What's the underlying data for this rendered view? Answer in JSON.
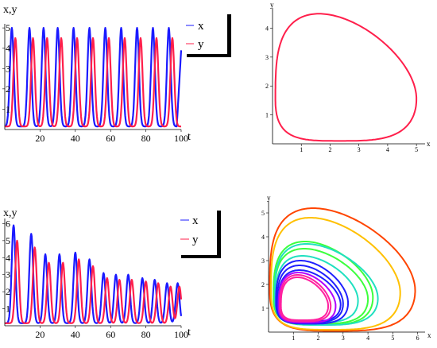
{
  "colors": {
    "x": "#1a1aff",
    "y": "#ff1f4b",
    "axis": "#000000"
  },
  "chart_data": [
    {
      "type": "line",
      "panel": "top-left",
      "xlabel": "t",
      "ylabel": "x,y",
      "xlim": [
        0,
        100
      ],
      "ylim": [
        0,
        5.2
      ],
      "xticks": [
        "20",
        "40",
        "60",
        "80",
        "100"
      ],
      "yticks": [
        "1",
        "2",
        "3",
        "4",
        "5"
      ],
      "legend": [
        "x",
        "y"
      ],
      "legend_placement": "top-right",
      "series": [
        {
          "name": "x",
          "color": "#1a1aff",
          "peak_times": [
            4,
            14,
            22,
            30,
            39,
            48,
            57,
            66,
            75,
            84,
            93
          ],
          "peak_values": [
            5,
            5,
            5,
            5,
            5,
            5,
            5,
            5,
            5,
            5,
            5
          ],
          "end": [
            100,
            3.9
          ]
        },
        {
          "name": "y",
          "color": "#ff1f4b",
          "peak_times": [
            6,
            16,
            24,
            32,
            41,
            50,
            59,
            68,
            77,
            86,
            95
          ],
          "peak_values": [
            4.5,
            4.5,
            4.5,
            4.5,
            4.5,
            4.5,
            4.5,
            4.5,
            4.5,
            4.5,
            4.5
          ]
        }
      ]
    },
    {
      "type": "line",
      "panel": "top-right",
      "xlabel": "x",
      "ylabel": "y",
      "xlim": [
        0,
        5.3
      ],
      "ylim": [
        0,
        4.7
      ],
      "xticks": [
        "1",
        "2",
        "3",
        "4",
        "5"
      ],
      "yticks": [
        "1",
        "2",
        "3",
        "4"
      ],
      "series": [
        {
          "color": "#ff1f4b",
          "loops": [
            {
              "xmin": 0.1,
              "xmax": 5.0,
              "ymin": 0.1,
              "ymax": 4.5,
              "xpeak": 1.0
            }
          ]
        }
      ]
    },
    {
      "type": "line",
      "panel": "bottom-left",
      "xlabel": "t",
      "ylabel": "x,y",
      "xlim": [
        0,
        100
      ],
      "ylim": [
        0,
        6.3
      ],
      "xticks": [
        "20",
        "40",
        "60",
        "80",
        "100"
      ],
      "yticks": [
        "1",
        "2",
        "3",
        "4",
        "5",
        "6"
      ],
      "legend": [
        "x",
        "y"
      ],
      "legend_placement": "top-right",
      "series": [
        {
          "name": "x",
          "color": "#1a1aff",
          "peak_times": [
            5,
            15,
            23,
            31,
            40,
            48,
            56,
            63,
            70,
            78,
            85,
            92,
            98
          ],
          "peak_values": [
            5.9,
            5.4,
            4.2,
            4.2,
            4.3,
            3.9,
            3.1,
            3.0,
            3.0,
            2.8,
            2.7,
            2.5,
            2.5
          ]
        },
        {
          "name": "y",
          "color": "#ff1f4b",
          "peak_times": [
            7,
            17,
            25,
            33,
            42,
            50,
            58,
            65,
            72,
            80,
            87,
            94,
            99
          ],
          "peak_values": [
            5.0,
            4.6,
            3.7,
            3.7,
            3.9,
            3.5,
            2.8,
            2.7,
            2.7,
            2.6,
            2.5,
            2.3,
            2.3
          ]
        }
      ]
    },
    {
      "type": "line",
      "panel": "bottom-right",
      "xlabel": "x",
      "ylabel": "y",
      "xlim": [
        0,
        6.3
      ],
      "ylim": [
        0,
        5.5
      ],
      "xticks": [
        "1",
        "2",
        "3",
        "4",
        "5",
        "6"
      ],
      "yticks": [
        "1",
        "2",
        "3",
        "4",
        "5"
      ],
      "series": [
        {
          "color": "#ff4500",
          "loops": [
            {
              "xmin": 0.05,
              "xmax": 5.9,
              "ymin": 0.05,
              "ymax": 5.2,
              "xpeak": 1.0
            }
          ]
        },
        {
          "color": "#ffc000",
          "loops": [
            {
              "xmin": 0.1,
              "xmax": 5.3,
              "ymin": 0.1,
              "ymax": 4.8,
              "xpeak": 1.0
            }
          ]
        },
        {
          "color": "#3cff3c",
          "loops": [
            {
              "xmin": 0.2,
              "xmax": 4.2,
              "ymin": 0.3,
              "ymax": 3.8,
              "xpeak": 1.0
            },
            {
              "xmin": 0.25,
              "xmax": 4.0,
              "ymin": 0.35,
              "ymax": 3.5,
              "xpeak": 1.0
            }
          ]
        },
        {
          "color": "#20e0c0",
          "loops": [
            {
              "xmin": 0.25,
              "xmax": 4.4,
              "ymin": 0.3,
              "ymax": 3.7,
              "xpeak": 1.0
            },
            {
              "xmin": 0.3,
              "xmax": 3.6,
              "ymin": 0.4,
              "ymax": 3.2,
              "xpeak": 1.0
            }
          ]
        },
        {
          "color": "#2020ff",
          "loops": [
            {
              "xmin": 0.3,
              "xmax": 3.2,
              "ymin": 0.35,
              "ymax": 3.0,
              "xpeak": 1.0
            },
            {
              "xmin": 0.35,
              "xmax": 3.0,
              "ymin": 0.4,
              "ymax": 2.8,
              "xpeak": 1.0
            },
            {
              "xmin": 0.4,
              "xmax": 2.9,
              "ymin": 0.45,
              "ymax": 2.6,
              "xpeak": 1.0
            }
          ]
        },
        {
          "color": "#b000ff",
          "loops": [
            {
              "xmin": 0.4,
              "xmax": 2.7,
              "ymin": 0.4,
              "ymax": 2.5,
              "xpeak": 1.0
            }
          ]
        },
        {
          "color": "#ff20a0",
          "loops": [
            {
              "xmin": 0.45,
              "xmax": 2.5,
              "ymin": 0.45,
              "ymax": 2.4,
              "xpeak": 1.0
            },
            {
              "xmin": 0.5,
              "xmax": 2.4,
              "ymin": 0.5,
              "ymax": 2.3,
              "xpeak": 1.0
            }
          ]
        }
      ]
    }
  ]
}
